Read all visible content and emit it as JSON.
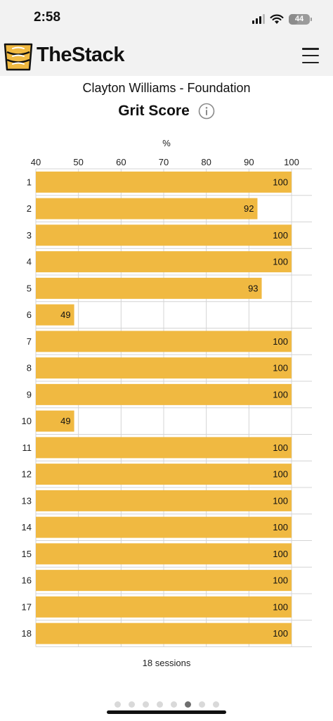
{
  "status_bar": {
    "time": "2:58",
    "battery": "44",
    "battery_level": 0.44
  },
  "header": {
    "app_name": "TheStack",
    "logo_icon": "stack-logo-icon",
    "menu_icon": "hamburger-menu-icon"
  },
  "page": {
    "subtitle": "Clayton Williams - Foundation",
    "title": "Grit Score",
    "info_icon": "info-icon",
    "footer": "18 sessions"
  },
  "chart_data": {
    "type": "bar",
    "orientation": "horizontal",
    "title": "Grit Score",
    "xlabel": "%",
    "ylabel": "",
    "xlim": [
      40,
      100
    ],
    "xticks": [
      40,
      50,
      60,
      70,
      80,
      90,
      100
    ],
    "categories": [
      "1",
      "2",
      "3",
      "4",
      "5",
      "6",
      "7",
      "8",
      "9",
      "10",
      "11",
      "12",
      "13",
      "14",
      "15",
      "16",
      "17",
      "18"
    ],
    "values": [
      100,
      92,
      100,
      100,
      93,
      49,
      100,
      100,
      100,
      49,
      100,
      100,
      100,
      100,
      100,
      100,
      100,
      100
    ],
    "bar_color": "#f0b941",
    "grid": true,
    "legend": "none"
  },
  "pagination": {
    "count": 8,
    "active_index": 5
  },
  "colors": {
    "accent": "#f0b941",
    "background": "#ffffff",
    "header_background": "#f2f2f2"
  }
}
